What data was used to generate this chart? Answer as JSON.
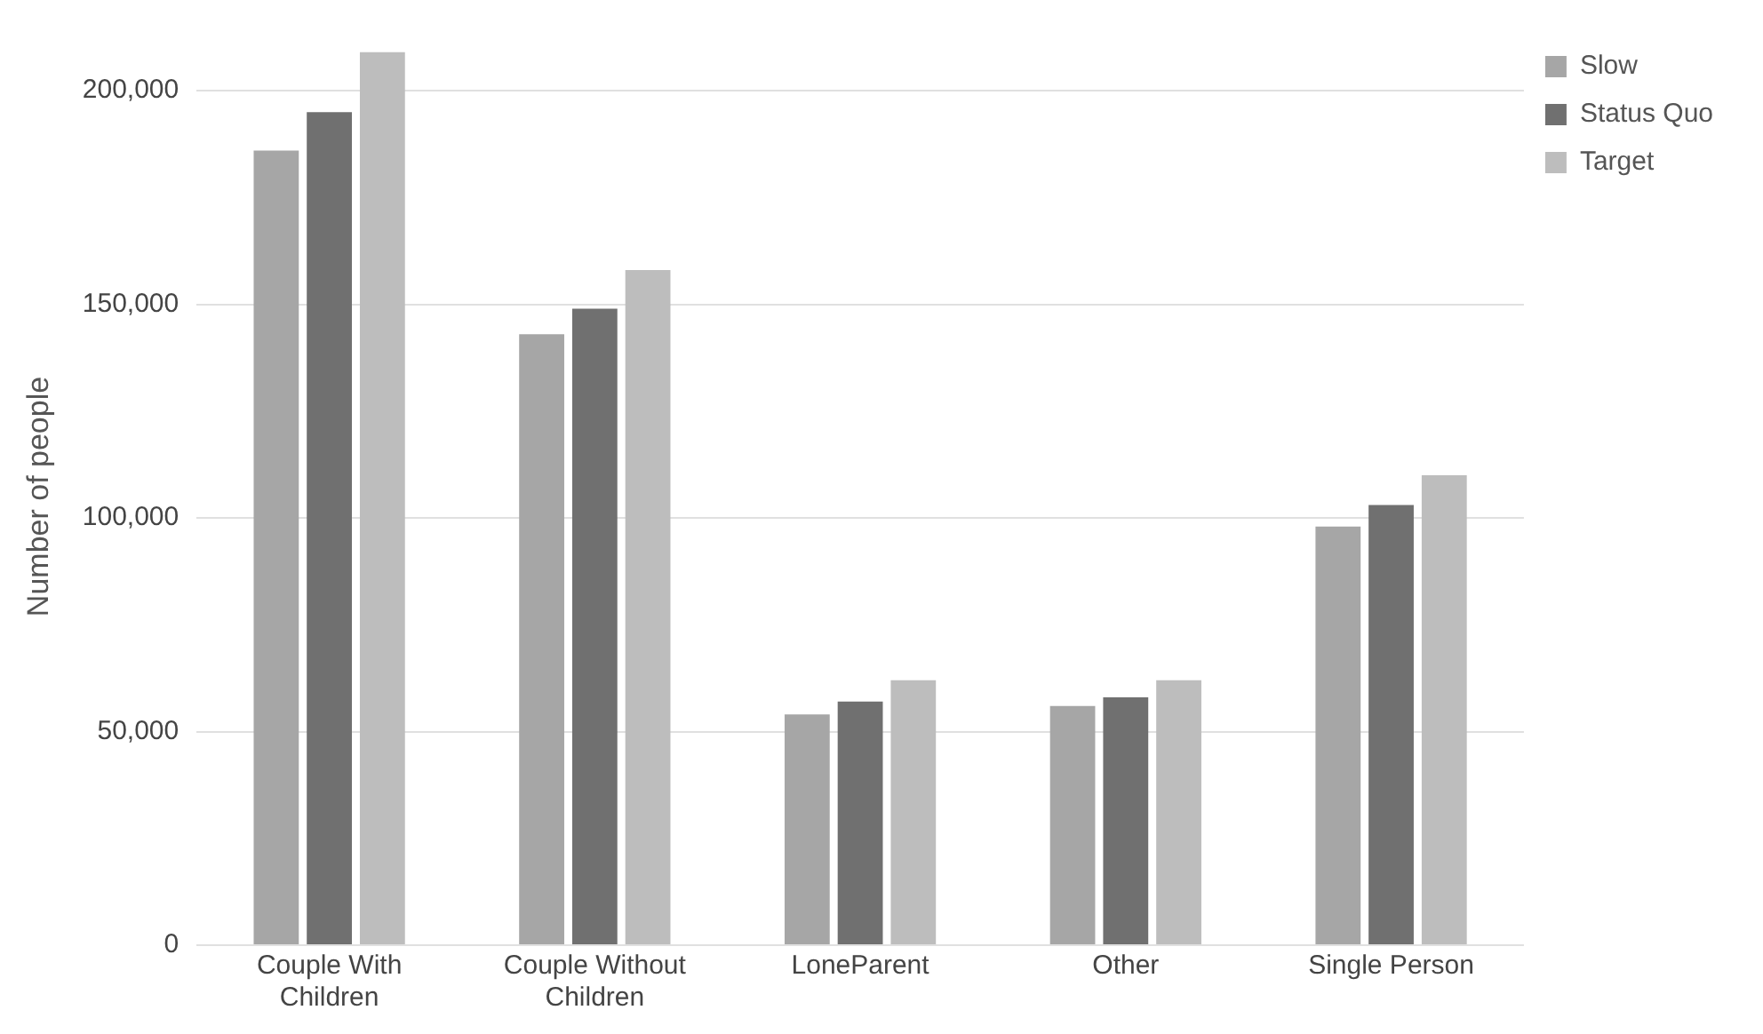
{
  "chart_data": {
    "type": "bar",
    "ylabel": "Number of people",
    "categories": [
      "Couple With Children",
      "Couple Without Children",
      "LoneParent",
      "Other",
      "Single Person"
    ],
    "series": [
      {
        "name": "Slow",
        "color": "#a6a6a6",
        "values": [
          186000,
          143000,
          54000,
          56000,
          98000
        ]
      },
      {
        "name": "Status Quo",
        "color": "#707070",
        "values": [
          195000,
          149000,
          57000,
          58000,
          103000
        ]
      },
      {
        "name": "Target",
        "color": "#bdbdbd",
        "values": [
          209000,
          158000,
          62000,
          62000,
          110000
        ]
      }
    ],
    "ylim": [
      0,
      210000
    ],
    "yticks": [
      {
        "value": 0,
        "label": "0"
      },
      {
        "value": 50000,
        "label": "50,000"
      },
      {
        "value": 100000,
        "label": "100,000"
      },
      {
        "value": 150000,
        "label": "150,000"
      },
      {
        "value": 200000,
        "label": "200,000"
      }
    ],
    "grid": "y",
    "legend": "top right"
  }
}
